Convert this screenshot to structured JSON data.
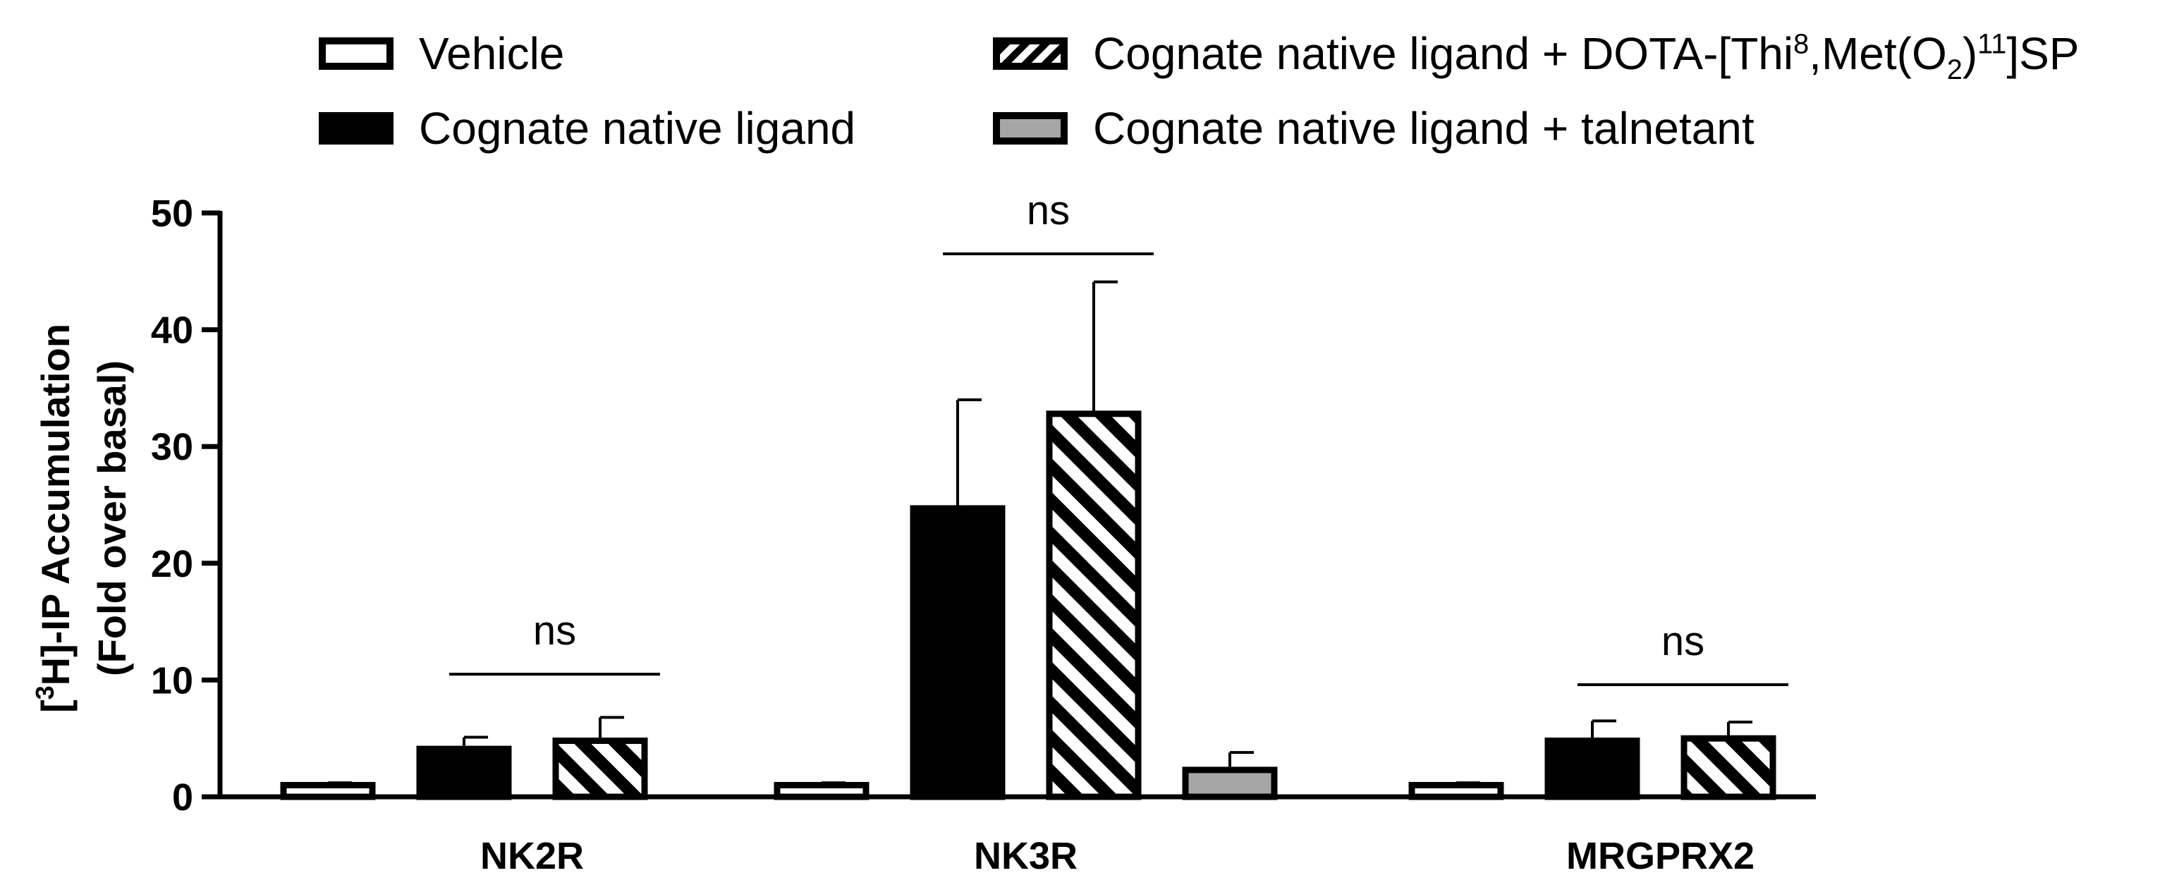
{
  "chart_data": {
    "type": "bar",
    "ylabel_line1_pre": "[",
    "ylabel_line1_sup": "3",
    "ylabel_line1_post": "H]-IP Accumulation",
    "ylabel_line2": "(Fold over basal)",
    "ylim": [
      0,
      50
    ],
    "yticks": [
      "0",
      "10",
      "20",
      "30",
      "40",
      "50"
    ],
    "categories": [
      "NK2R",
      "NK3R",
      "MRGPRX2"
    ],
    "series": [
      {
        "name": "Vehicle",
        "style": "white",
        "values": [
          1.0,
          1.0,
          1.0
        ],
        "errors": [
          0.2,
          0.2,
          0.2
        ]
      },
      {
        "name": "Cognate native ligand",
        "style": "black",
        "values": [
          4.1,
          24.7,
          4.8
        ],
        "errors": [
          1.0,
          9.3,
          1.7
        ]
      },
      {
        "name": "Cognate native ligand + DOTA-[Thi8,Met(O2)11]SP",
        "style": "hatch",
        "values": [
          4.8,
          32.8,
          5.0
        ],
        "errors": [
          2.0,
          11.3,
          1.4
        ]
      },
      {
        "name": "Cognate native ligand + talnetant",
        "style": "gray",
        "values": [
          null,
          2.3,
          null
        ],
        "errors": [
          null,
          1.5,
          null
        ]
      }
    ],
    "annotations": [
      {
        "text": "ns",
        "category": "NK2R",
        "from_series": 1,
        "to_series": 2,
        "level": 10.5
      },
      {
        "text": "ns",
        "category": "NK3R",
        "from_series": 1,
        "to_series": 2,
        "level": 46.5
      },
      {
        "text": "ns",
        "category": "MRGPRX2",
        "from_series": 1,
        "to_series": 2,
        "level": 9.6
      }
    ],
    "legend": {
      "placement": "top",
      "vehicle": "Vehicle",
      "native": "Cognate native ligand",
      "dota_pre": "Cognate native ligand + DOTA-[Thi",
      "dota_sup1": "8",
      "dota_mid1": ",Met(O",
      "dota_sub": "2",
      "dota_mid2": ")",
      "dota_sup2": "11",
      "dota_post": "]SP",
      "talnetant": "Cognate native ligand + talnetant"
    },
    "colors": {
      "black": "#000000",
      "gray": "#a6a6a6",
      "white": "#ffffff"
    },
    "grid": false
  }
}
